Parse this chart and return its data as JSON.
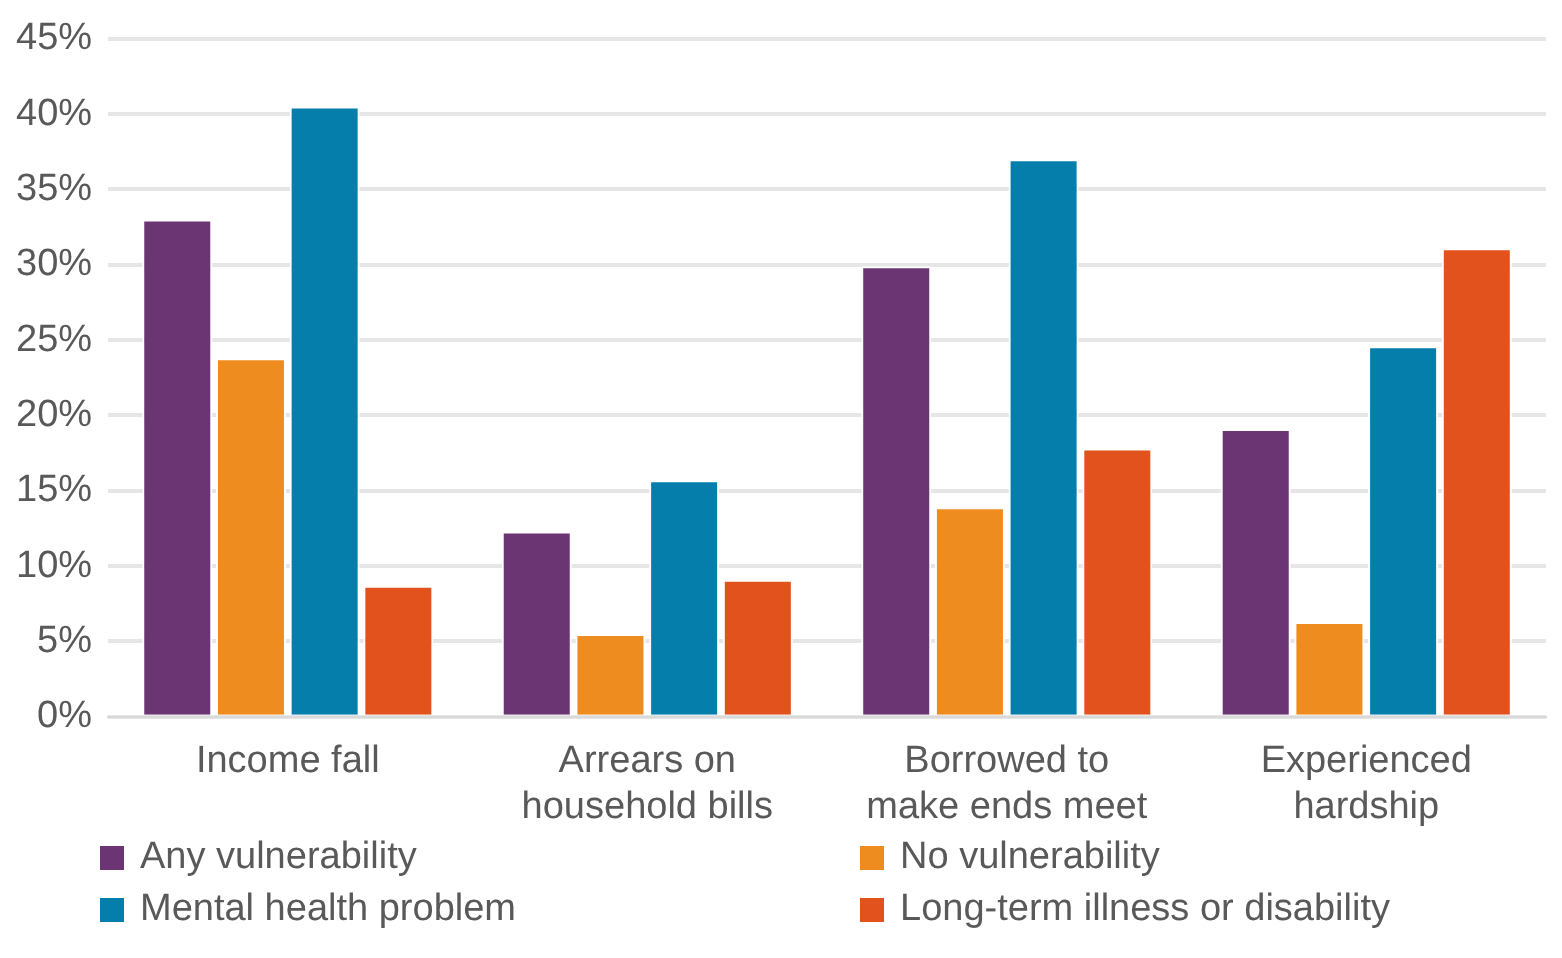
{
  "chart_data": {
    "type": "bar",
    "categories": [
      "Income fall",
      "Arrears on household bills",
      "Borrowed to make ends meet",
      "Experienced hardship"
    ],
    "series": [
      {
        "name": "Any vulnerability",
        "color": "#6b3473",
        "values": [
          33.0,
          12.3,
          29.9,
          19.1
        ]
      },
      {
        "name": "No vulnerability",
        "color": "#ef8c20",
        "values": [
          23.8,
          5.5,
          13.9,
          6.3
        ]
      },
      {
        "name": "Mental health problem",
        "color": "#067eac",
        "values": [
          40.5,
          15.7,
          37.0,
          24.6
        ]
      },
      {
        "name": "Long-term illness or disability",
        "color": "#e2521d",
        "values": [
          8.7,
          9.1,
          17.8,
          31.1
        ]
      }
    ],
    "ylim": [
      0,
      45
    ],
    "yticks": [
      {
        "value": 0,
        "label": "0%"
      },
      {
        "value": 5,
        "label": "5%"
      },
      {
        "value": 10,
        "label": "10%"
      },
      {
        "value": 15,
        "label": "15%"
      },
      {
        "value": 20,
        "label": "20%"
      },
      {
        "value": 25,
        "label": "25%"
      },
      {
        "value": 30,
        "label": "30%"
      },
      {
        "value": 35,
        "label": "35%"
      },
      {
        "value": 40,
        "label": "40%"
      },
      {
        "value": 45,
        "label": "45%"
      }
    ],
    "grid": "y",
    "legend": "bottom"
  }
}
